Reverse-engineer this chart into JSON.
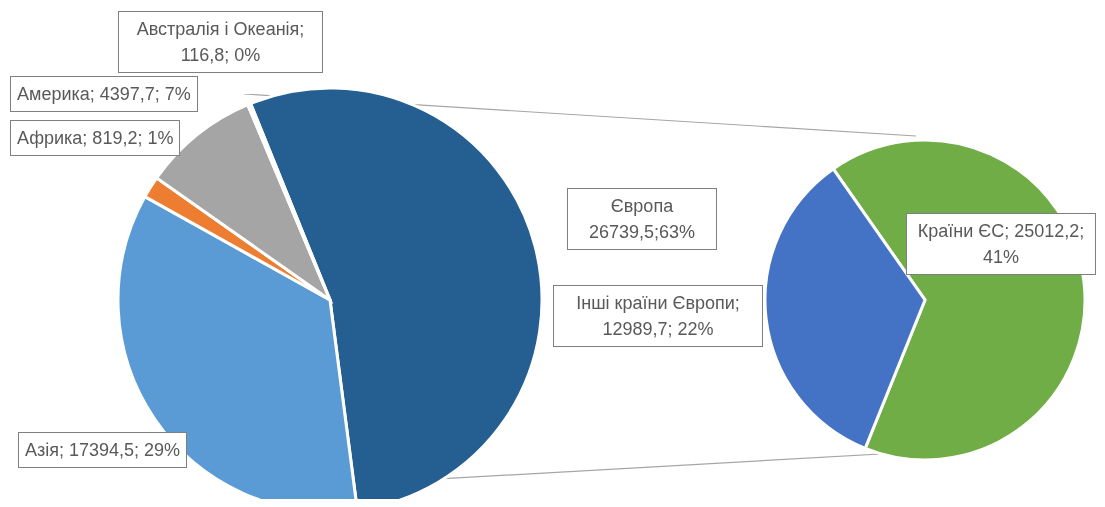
{
  "chart_data": [
    {
      "type": "pie",
      "categories": [
        "Європа",
        "Азія",
        "Африка",
        "Америка",
        "Австралія і Океанія"
      ],
      "values": [
        26739.5,
        17394.5,
        819.2,
        4397.7,
        116.8
      ],
      "colors": [
        "#255e91",
        "#5b9bd5",
        "#ed7d31",
        "#a5a5a5",
        "#ffc000"
      ],
      "value_labels": [
        "26739,5;63%",
        "; 17394,5; 29%",
        "; 819,2; 1%",
        "; 4397,7; 7%",
        "; 116,8; 0%"
      ]
    },
    {
      "type": "pie",
      "categories": [
        "Країни ЄС",
        "Інші країни Європи"
      ],
      "values": [
        25012.2,
        12989.7
      ],
      "colors": [
        "#70ad47",
        "#4472c4"
      ],
      "value_labels": [
        "; 25012,2; 41%",
        "; 12989,7; 22%"
      ]
    }
  ]
}
